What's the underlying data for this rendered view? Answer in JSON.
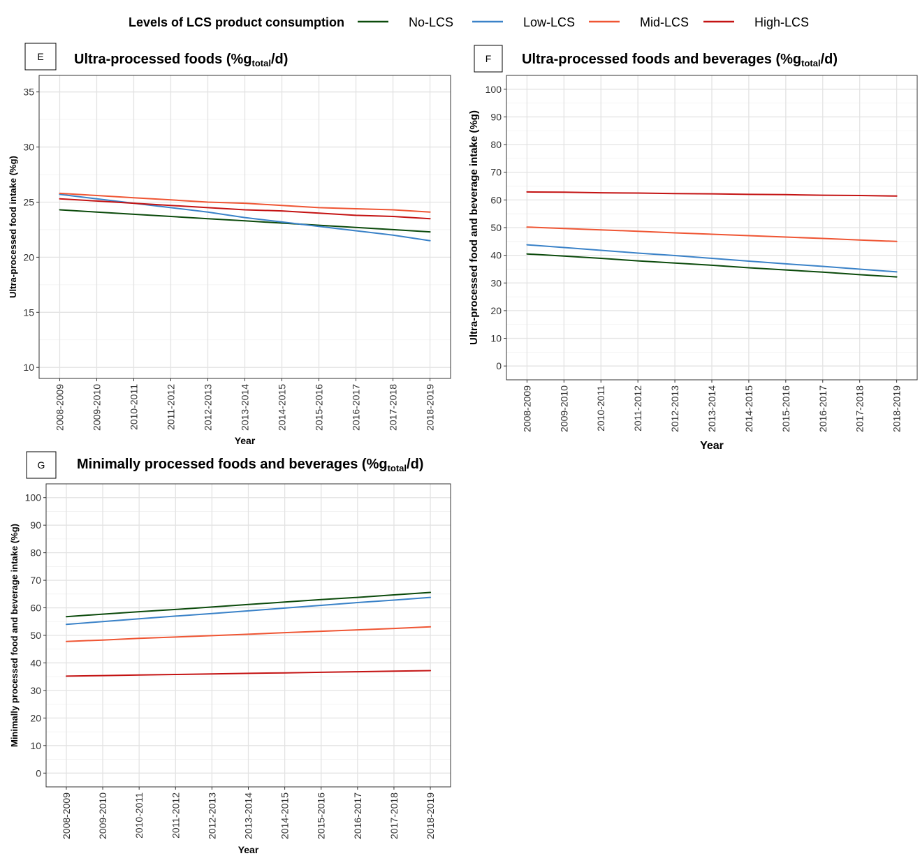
{
  "legend": {
    "title": "Levels of LCS product consumption",
    "items": [
      {
        "label": "No-LCS",
        "color": "#0b4a0b"
      },
      {
        "label": "Low-LCS",
        "color": "#3a82c8"
      },
      {
        "label": "Mid-LCS",
        "color": "#ef5533"
      },
      {
        "label": "High-LCS",
        "color": "#c41313"
      }
    ]
  },
  "chart_data": [
    {
      "panel": "E",
      "type": "line",
      "title": "Ultra-processed foods (%g",
      "title_sub": "total",
      "title_end": "/d)",
      "xlabel": "Year",
      "ylabel": "Ultra-processed food intake (%g)",
      "categories": [
        "2008-2009",
        "2009-2010",
        "2010-2011",
        "2011-2012",
        "2012-2013",
        "2013-2014",
        "2014-2015",
        "2015-2016",
        "2016-2017",
        "2017-2018",
        "2018-2019"
      ],
      "ylim": [
        9,
        36.5
      ],
      "yticks": [
        10,
        15,
        20,
        25,
        30,
        35
      ],
      "grid": true,
      "series": [
        {
          "name": "No-LCS",
          "color": "#0b4a0b",
          "values": [
            24.3,
            24.1,
            23.9,
            23.7,
            23.5,
            23.3,
            23.1,
            22.9,
            22.7,
            22.5,
            22.3
          ]
        },
        {
          "name": "Low-LCS",
          "color": "#3a82c8",
          "values": [
            25.7,
            25.3,
            24.9,
            24.5,
            24.1,
            23.6,
            23.2,
            22.8,
            22.4,
            22.0,
            21.5
          ]
        },
        {
          "name": "Mid-LCS",
          "color": "#ef5533",
          "values": [
            25.8,
            25.6,
            25.4,
            25.2,
            25.0,
            24.9,
            24.7,
            24.5,
            24.4,
            24.3,
            24.1
          ]
        },
        {
          "name": "High-LCS",
          "color": "#c41313",
          "values": [
            25.3,
            25.1,
            24.9,
            24.7,
            24.5,
            24.3,
            24.2,
            24.0,
            23.8,
            23.7,
            23.5
          ]
        }
      ]
    },
    {
      "panel": "F",
      "type": "line",
      "title": "Ultra-processed foods and beverages (%g",
      "title_sub": "total",
      "title_end": "/d)",
      "xlabel": "Year",
      "ylabel": "Ultra-processed food and beverage intake (%g)",
      "categories": [
        "2008-2009",
        "2009-2010",
        "2010-2011",
        "2011-2012",
        "2012-2013",
        "2013-2014",
        "2014-2015",
        "2015-2016",
        "2016-2017",
        "2017-2018",
        "2018-2019"
      ],
      "ylim": [
        -5,
        105
      ],
      "yticks": [
        0,
        10,
        20,
        30,
        40,
        50,
        60,
        70,
        80,
        90,
        100
      ],
      "grid": true,
      "series": [
        {
          "name": "No-LCS",
          "color": "#0b4a0b",
          "values": [
            40.5,
            39.7,
            38.9,
            38.0,
            37.2,
            36.4,
            35.5,
            34.7,
            33.9,
            33.0,
            32.2
          ]
        },
        {
          "name": "Low-LCS",
          "color": "#3a82c8",
          "values": [
            43.8,
            42.8,
            41.8,
            40.8,
            39.9,
            38.9,
            37.9,
            36.9,
            36.0,
            35.0,
            34.0
          ]
        },
        {
          "name": "Mid-LCS",
          "color": "#ef5533",
          "values": [
            50.2,
            49.7,
            49.2,
            48.7,
            48.1,
            47.6,
            47.1,
            46.6,
            46.1,
            45.5,
            45.0
          ]
        },
        {
          "name": "High-LCS",
          "color": "#c41313",
          "values": [
            62.9,
            62.8,
            62.6,
            62.5,
            62.3,
            62.2,
            62.0,
            61.9,
            61.7,
            61.6,
            61.4
          ]
        }
      ]
    },
    {
      "panel": "G",
      "type": "line",
      "title": "Minimally processed foods and beverages (%g",
      "title_sub": "total",
      "title_end": "/d)",
      "xlabel": "Year",
      "ylabel": "Minimally processed food and beverage intake (%g)",
      "categories": [
        "2008-2009",
        "2009-2010",
        "2010-2011",
        "2011-2012",
        "2012-2013",
        "2013-2014",
        "2014-2015",
        "2015-2016",
        "2016-2017",
        "2017-2018",
        "2018-2019"
      ],
      "ylim": [
        -5,
        105
      ],
      "yticks": [
        0,
        10,
        20,
        30,
        40,
        50,
        60,
        70,
        80,
        90,
        100
      ],
      "grid": true,
      "series": [
        {
          "name": "No-LCS",
          "color": "#0b4a0b",
          "values": [
            56.8,
            57.7,
            58.6,
            59.4,
            60.3,
            61.2,
            62.1,
            63.0,
            63.8,
            64.7,
            65.6
          ]
        },
        {
          "name": "Low-LCS",
          "color": "#3a82c8",
          "values": [
            54.0,
            55.0,
            56.0,
            57.0,
            57.9,
            58.9,
            59.9,
            60.9,
            61.9,
            62.8,
            63.8
          ]
        },
        {
          "name": "Mid-LCS",
          "color": "#ef5533",
          "values": [
            47.8,
            48.3,
            48.9,
            49.4,
            49.9,
            50.4,
            51.0,
            51.5,
            52.0,
            52.5,
            53.1
          ]
        },
        {
          "name": "High-LCS",
          "color": "#c41313",
          "values": [
            35.2,
            35.4,
            35.6,
            35.8,
            36.0,
            36.2,
            36.4,
            36.6,
            36.8,
            37.0,
            37.2
          ]
        }
      ]
    }
  ]
}
